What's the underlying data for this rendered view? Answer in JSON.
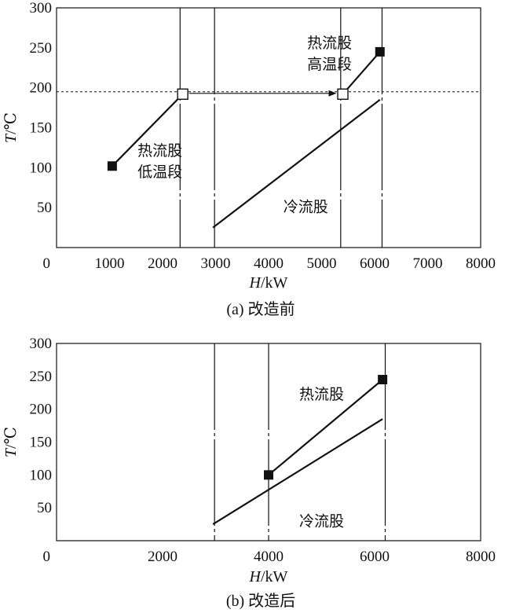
{
  "chart_data": [
    {
      "type": "line",
      "caption": "(a) 改造前",
      "xlabel_italic": "H",
      "xlabel_rest": "/kW",
      "ylabel_italic": "T",
      "ylabel_rest": "/℃",
      "xlim": [
        0,
        8000
      ],
      "ylim": [
        0,
        300
      ],
      "xticks": [
        "0",
        "1000",
        "2000",
        "3000",
        "4000",
        "5000",
        "6000",
        "7000",
        "8000"
      ],
      "yticks": [
        "50",
        "100",
        "150",
        "200",
        "250",
        "300"
      ],
      "grid": false,
      "series": [
        {
          "name": "热流股低温段",
          "x": [
            1050,
            2380
          ],
          "y": [
            102,
            192
          ],
          "markers": [
            "filled",
            "open"
          ]
        },
        {
          "name": "热流股高温段",
          "x": [
            5400,
            6100
          ],
          "y": [
            192,
            245
          ],
          "markers": [
            "open",
            "filled"
          ]
        },
        {
          "name": "冷流股",
          "x": [
            2950,
            6100
          ],
          "y": [
            25,
            185
          ],
          "markers": []
        }
      ],
      "hline": {
        "y": 195,
        "style": "dashed"
      },
      "arrow": {
        "from": [
          2380,
          192
        ],
        "to": [
          5400,
          192
        ]
      },
      "vlines": [
        {
          "x": 2330,
          "style": "dashdot"
        },
        {
          "x": 2980,
          "style": "dashdot"
        },
        {
          "x": 5360,
          "style": "dashdot"
        },
        {
          "x": 6140,
          "style": "dashdot"
        }
      ],
      "annotations": [
        {
          "lines": [
            "热流股",
            "高温段"
          ],
          "x": 5150,
          "y": 250
        },
        {
          "lines": [
            "热流股",
            "低温段"
          ],
          "x": 1950,
          "y": 115
        },
        {
          "lines": [
            "冷流股"
          ],
          "x": 4700,
          "y": 45
        }
      ]
    },
    {
      "type": "line",
      "caption": "(b) 改造后",
      "xlabel_italic": "H",
      "xlabel_rest": "/kW",
      "ylabel_italic": "T",
      "ylabel_rest": "/℃",
      "xlim": [
        0,
        8000
      ],
      "ylim": [
        0,
        300
      ],
      "xticks": [
        "0",
        "2000",
        "4000",
        "6000",
        "8000"
      ],
      "yticks": [
        "50",
        "100",
        "150",
        "200",
        "250",
        "300"
      ],
      "grid": false,
      "series": [
        {
          "name": "热流股",
          "x": [
            4000,
            6150
          ],
          "y": [
            100,
            245
          ],
          "markers": [
            "filled",
            "filled"
          ]
        },
        {
          "name": "冷流股",
          "x": [
            2950,
            6150
          ],
          "y": [
            25,
            185
          ],
          "markers": []
        }
      ],
      "vlines": [
        {
          "x": 2980,
          "style": "dashdot"
        },
        {
          "x": 4000,
          "style": "dashdot"
        },
        {
          "x": 6200,
          "style": "dashdot"
        }
      ],
      "annotations": [
        {
          "lines": [
            "热流股"
          ],
          "x": 5000,
          "y": 215
        },
        {
          "lines": [
            "冷流股"
          ],
          "x": 5000,
          "y": 22
        }
      ]
    }
  ]
}
